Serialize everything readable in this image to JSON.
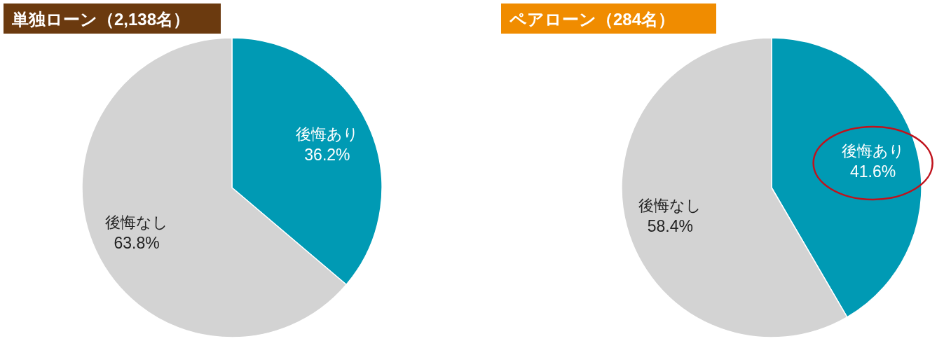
{
  "chart_data": [
    {
      "type": "pie",
      "title": "単独ローン（2,138名）",
      "categories": [
        "後悔あり",
        "後悔なし"
      ],
      "values": [
        36.2,
        63.8
      ],
      "value_labels": [
        "36.2%",
        "63.8%"
      ],
      "colors": [
        "#009ab4",
        "#d3d3d3"
      ],
      "legend": false
    },
    {
      "type": "pie",
      "title": "ペアローン（284名）",
      "categories": [
        "後悔あり",
        "後悔なし"
      ],
      "values": [
        41.6,
        58.4
      ],
      "value_labels": [
        "41.6%",
        "58.4%"
      ],
      "colors": [
        "#009ab4",
        "#d3d3d3"
      ],
      "legend": false
    }
  ]
}
